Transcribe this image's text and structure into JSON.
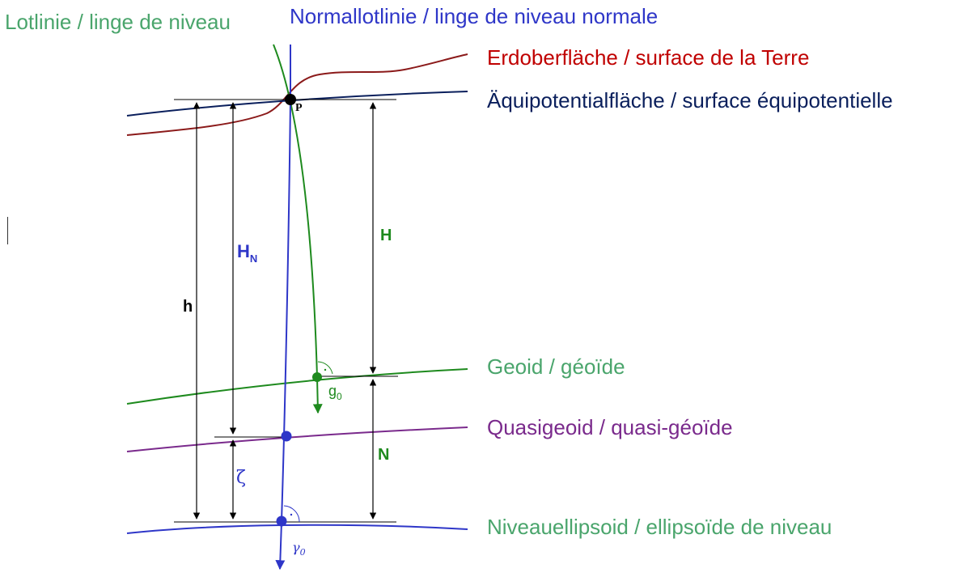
{
  "colors": {
    "plumb": "#1e8a1e",
    "plumb_label": "#4aa56c",
    "normal": "#2e36c8",
    "terrain": "#8b1a1a",
    "terrain_label": "#c00000",
    "equipotential": "#0a1f5c",
    "quasigeoid": "#7a2a8c",
    "black": "#000000"
  },
  "labels": {
    "plumb_line": "Lotlinie / linge de niveau",
    "normal_plumb_line": "Normallotlinie / linge de niveau normale",
    "earth_surface": "Erdoberfläche / surface de la Terre",
    "equipotential_surface": "Äquipotentialfläche / surface équipotentielle",
    "geoid": "Geoid / géoïde",
    "quasigeoid": "Quasigeoid / quasi-géoïde",
    "level_ellipsoid": "Niveauellipsoid / ellipsoïde de niveau"
  },
  "symbols": {
    "point": "P",
    "ellipsoidal_height": "h",
    "normal_height_base": "H",
    "normal_height_sub": "N",
    "orthometric_height": "H",
    "geoid_undulation": "N",
    "height_anomaly": "ζ",
    "gravity_base": "g",
    "gravity_sub": "0",
    "normal_gravity_base": "γ",
    "normal_gravity_sub": "0"
  }
}
